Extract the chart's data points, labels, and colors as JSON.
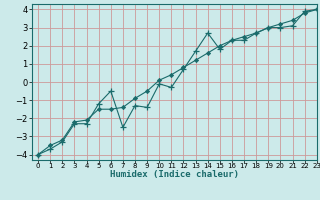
{
  "title": "",
  "xlabel": "Humidex (Indice chaleur)",
  "bg_color": "#cceaea",
  "grid_color": "#cc9999",
  "line_color": "#1a6b6b",
  "xlim": [
    -0.5,
    23
  ],
  "ylim": [
    -4.3,
    4.3
  ],
  "xticks": [
    0,
    1,
    2,
    3,
    4,
    5,
    6,
    7,
    8,
    9,
    10,
    11,
    12,
    13,
    14,
    15,
    16,
    17,
    18,
    19,
    20,
    21,
    22,
    23
  ],
  "yticks": [
    -4,
    -3,
    -2,
    -1,
    0,
    1,
    2,
    3,
    4
  ],
  "line1_x": [
    0,
    1,
    2,
    3,
    4,
    5,
    6,
    7,
    8,
    9,
    10,
    11,
    12,
    13,
    14,
    15,
    16,
    17,
    18,
    19,
    20,
    21,
    22,
    23
  ],
  "line1_y": [
    -4.0,
    -3.7,
    -3.3,
    -2.3,
    -2.3,
    -1.2,
    -0.5,
    -2.5,
    -1.3,
    -1.4,
    -0.1,
    -0.3,
    0.7,
    1.7,
    2.7,
    1.8,
    2.3,
    2.3,
    2.7,
    3.0,
    3.0,
    3.1,
    3.9,
    4.0
  ],
  "line2_x": [
    0,
    1,
    2,
    3,
    4,
    5,
    6,
    7,
    8,
    9,
    10,
    11,
    12,
    13,
    14,
    15,
    16,
    17,
    18,
    19,
    20,
    21,
    22,
    23
  ],
  "line2_y": [
    -4.0,
    -3.5,
    -3.2,
    -2.2,
    -2.1,
    -1.5,
    -1.5,
    -1.4,
    -0.9,
    -0.5,
    0.1,
    0.4,
    0.8,
    1.2,
    1.6,
    2.0,
    2.3,
    2.5,
    2.7,
    3.0,
    3.2,
    3.4,
    3.8,
    4.0
  ]
}
